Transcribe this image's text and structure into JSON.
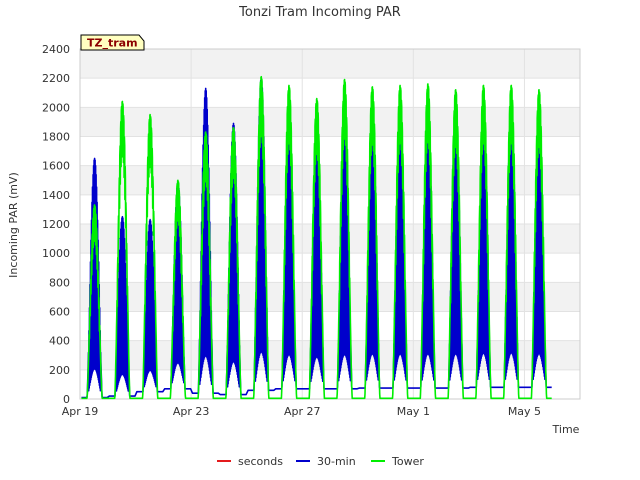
{
  "chart_data": {
    "type": "line",
    "title": "Tonzi Tram Incoming PAR",
    "site_badge": "TZ_tram",
    "xlabel": "Time",
    "ylabel": "Incoming PAR (mV)",
    "ylim": [
      0,
      2400
    ],
    "yticks": [
      0,
      200,
      400,
      600,
      800,
      1000,
      1200,
      1400,
      1600,
      1800,
      2000,
      2200,
      2400
    ],
    "xlim_days": [
      "Apr 19",
      "May 7"
    ],
    "xticks": [
      {
        "label": "Apr 19",
        "day": 0
      },
      {
        "label": "Apr 23",
        "day": 4
      },
      {
        "label": "Apr 27",
        "day": 8
      },
      {
        "label": "May 1",
        "day": 12
      },
      {
        "label": "May 5",
        "day": 16
      }
    ],
    "grid": true,
    "legend_position": "bottom",
    "colors": {
      "seconds": "#e41a1c",
      "thirty_min": "#0000cc",
      "tower": "#00ee00"
    },
    "series": [
      {
        "name": "seconds",
        "values": []
      },
      {
        "name": "30-min",
        "daily_peaks": [
          {
            "date": "Apr 19",
            "peak": 1650,
            "night": 10
          },
          {
            "date": "Apr 20",
            "peak": 1250,
            "night": 20
          },
          {
            "date": "Apr 21",
            "peak": 1230,
            "night": 50
          },
          {
            "date": "Apr 22",
            "peak": 1490,
            "night": 70
          },
          {
            "date": "Apr 23",
            "peak": 2130,
            "night": 40
          },
          {
            "date": "Apr 24",
            "peak": 1890,
            "night": 30
          },
          {
            "date": "Apr 25",
            "peak": 2200,
            "night": 60
          },
          {
            "date": "Apr 26",
            "peak": 1960,
            "night": 70
          },
          {
            "date": "Apr 27",
            "peak": 1820,
            "night": 70
          },
          {
            "date": "Apr 28",
            "peak": 1960,
            "night": 70
          },
          {
            "date": "Apr 29",
            "peak": 1960,
            "night": 75
          },
          {
            "date": "Apr 30",
            "peak": 1960,
            "night": 75
          },
          {
            "date": "May 1",
            "peak": 1960,
            "night": 75
          },
          {
            "date": "May 2",
            "peak": 1960,
            "night": 75
          },
          {
            "date": "May 3",
            "peak": 1960,
            "night": 80
          },
          {
            "date": "May 4",
            "peak": 1980,
            "night": 80
          },
          {
            "date": "May 5",
            "peak": 1930,
            "night": 80
          }
        ]
      },
      {
        "name": "Tower",
        "daily_peaks": [
          {
            "date": "Apr 19",
            "peak": 1330
          },
          {
            "date": "Apr 20",
            "peak": 2040
          },
          {
            "date": "Apr 21",
            "peak": 1950
          },
          {
            "date": "Apr 22",
            "peak": 1500
          },
          {
            "date": "Apr 23",
            "peak": 1830
          },
          {
            "date": "Apr 24",
            "peak": 1860
          },
          {
            "date": "Apr 25",
            "peak": 2210
          },
          {
            "date": "Apr 26",
            "peak": 2150
          },
          {
            "date": "Apr 27",
            "peak": 2060
          },
          {
            "date": "Apr 28",
            "peak": 2190
          },
          {
            "date": "Apr 29",
            "peak": 2140
          },
          {
            "date": "Apr 30",
            "peak": 2150
          },
          {
            "date": "May 1",
            "peak": 2160
          },
          {
            "date": "May 2",
            "peak": 2120
          },
          {
            "date": "May 3",
            "peak": 2150
          },
          {
            "date": "May 4",
            "peak": 2150
          },
          {
            "date": "May 5",
            "peak": 2120
          }
        ]
      }
    ],
    "legend": [
      {
        "key": "seconds",
        "label": "seconds"
      },
      {
        "key": "thirty_min",
        "label": "30-min"
      },
      {
        "key": "tower",
        "label": "Tower"
      }
    ]
  }
}
